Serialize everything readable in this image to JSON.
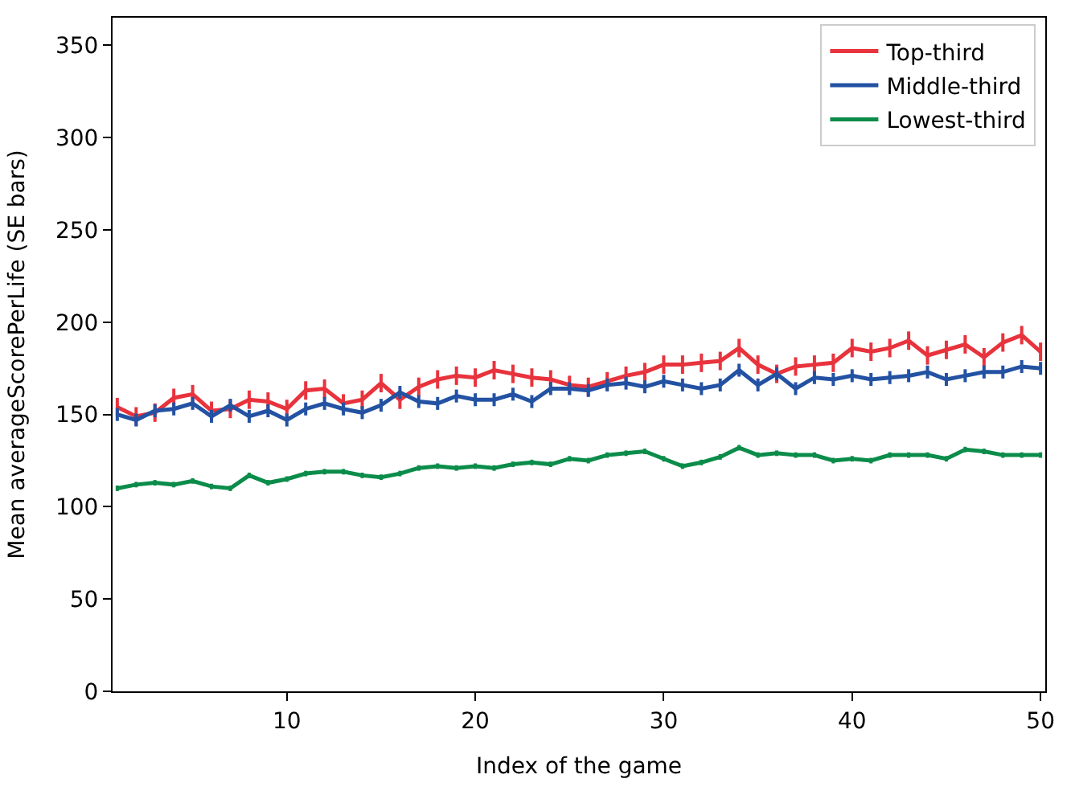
{
  "chart_data": {
    "type": "line",
    "xlabel": "Index of the game",
    "ylabel": "Mean averageScorePerLife (SE bars)",
    "x": [
      1,
      2,
      3,
      4,
      5,
      6,
      7,
      8,
      9,
      10,
      11,
      12,
      13,
      14,
      15,
      16,
      17,
      18,
      19,
      20,
      21,
      22,
      23,
      24,
      25,
      26,
      27,
      28,
      29,
      30,
      31,
      32,
      33,
      34,
      35,
      36,
      37,
      38,
      39,
      40,
      41,
      42,
      43,
      44,
      45,
      46,
      47,
      48,
      49,
      50
    ],
    "xlim": [
      0.75,
      50.25
    ],
    "xticks": [
      10,
      20,
      30,
      40,
      50
    ],
    "ylim": [
      0,
      365
    ],
    "yticks": [
      0,
      50,
      100,
      150,
      200,
      250,
      300,
      350
    ],
    "legend": "top right",
    "marker": "none",
    "line_style": "solid",
    "series": [
      {
        "name": "Top-third",
        "color": "#e8333d",
        "errors": [
          5,
          5,
          5,
          5,
          5,
          5,
          5,
          5,
          5,
          5,
          5,
          5,
          5,
          5,
          5,
          5,
          5,
          5,
          5,
          5,
          5,
          5,
          5,
          5,
          5,
          5,
          5,
          5,
          5,
          5,
          5,
          5,
          5,
          5,
          5,
          5,
          5,
          5,
          5,
          5,
          5,
          5,
          5,
          5,
          5,
          5,
          5,
          5,
          5,
          5
        ],
        "values": [
          154,
          149,
          151,
          159,
          161,
          152,
          153,
          158,
          157,
          153,
          163,
          164,
          156,
          158,
          167,
          158,
          165,
          169,
          171,
          170,
          174,
          172,
          170,
          169,
          166,
          165,
          168,
          171,
          173,
          177,
          177,
          178,
          179,
          186,
          177,
          172,
          176,
          177,
          178,
          186,
          184,
          186,
          190,
          182,
          185,
          188,
          181,
          189,
          193,
          184
        ]
      },
      {
        "name": "Middle-third",
        "color": "#2352a3",
        "errors": [
          3.5,
          3.5,
          3.5,
          3.5,
          3.5,
          3.5,
          3.5,
          3.5,
          3.5,
          3.5,
          3.5,
          3.5,
          3.5,
          3.5,
          3.5,
          3.5,
          3.5,
          3.5,
          3.5,
          3.5,
          3.5,
          3.5,
          3.5,
          3.5,
          3.5,
          3.5,
          3.5,
          3.5,
          3.5,
          3.5,
          3.5,
          3.5,
          3.5,
          3.5,
          3.5,
          3.5,
          3.5,
          3.5,
          3.5,
          3.5,
          3.5,
          3.5,
          3.5,
          3.5,
          3.5,
          3.5,
          3.5,
          3.5,
          3.5,
          3.5
        ],
        "values": [
          150,
          147,
          152,
          153,
          156,
          149,
          155,
          149,
          152,
          147,
          153,
          156,
          153,
          151,
          155,
          162,
          157,
          156,
          160,
          158,
          158,
          161,
          157,
          164,
          164,
          163,
          166,
          167,
          165,
          168,
          166,
          164,
          166,
          174,
          166,
          172,
          164,
          170,
          169,
          171,
          169,
          170,
          171,
          173,
          169,
          171,
          173,
          173,
          176,
          175
        ]
      },
      {
        "name": "Lowest-third",
        "color": "#0b8c4a",
        "errors": [
          1.5,
          1.5,
          1.5,
          1.5,
          1.5,
          1.5,
          1.5,
          1.5,
          1.5,
          1.5,
          1.5,
          1.5,
          1.5,
          1.5,
          1.5,
          1.5,
          1.5,
          1.5,
          1.5,
          1.5,
          1.5,
          1.5,
          1.5,
          1.5,
          1.5,
          1.5,
          1.5,
          1.5,
          1.5,
          1.5,
          1.5,
          1.5,
          1.5,
          1.5,
          1.5,
          1.5,
          1.5,
          1.5,
          1.5,
          1.5,
          1.5,
          1.5,
          1.5,
          1.5,
          1.5,
          1.5,
          1.5,
          1.5,
          1.5,
          1.5
        ],
        "values": [
          110,
          112,
          113,
          112,
          114,
          111,
          110,
          117,
          113,
          115,
          118,
          119,
          119,
          117,
          116,
          118,
          121,
          122,
          121,
          122,
          121,
          123,
          124,
          123,
          126,
          125,
          128,
          129,
          130,
          126,
          122,
          124,
          127,
          132,
          128,
          129,
          128,
          128,
          125,
          126,
          125,
          128,
          128,
          128,
          126,
          131,
          130,
          128,
          128,
          128
        ]
      }
    ]
  }
}
